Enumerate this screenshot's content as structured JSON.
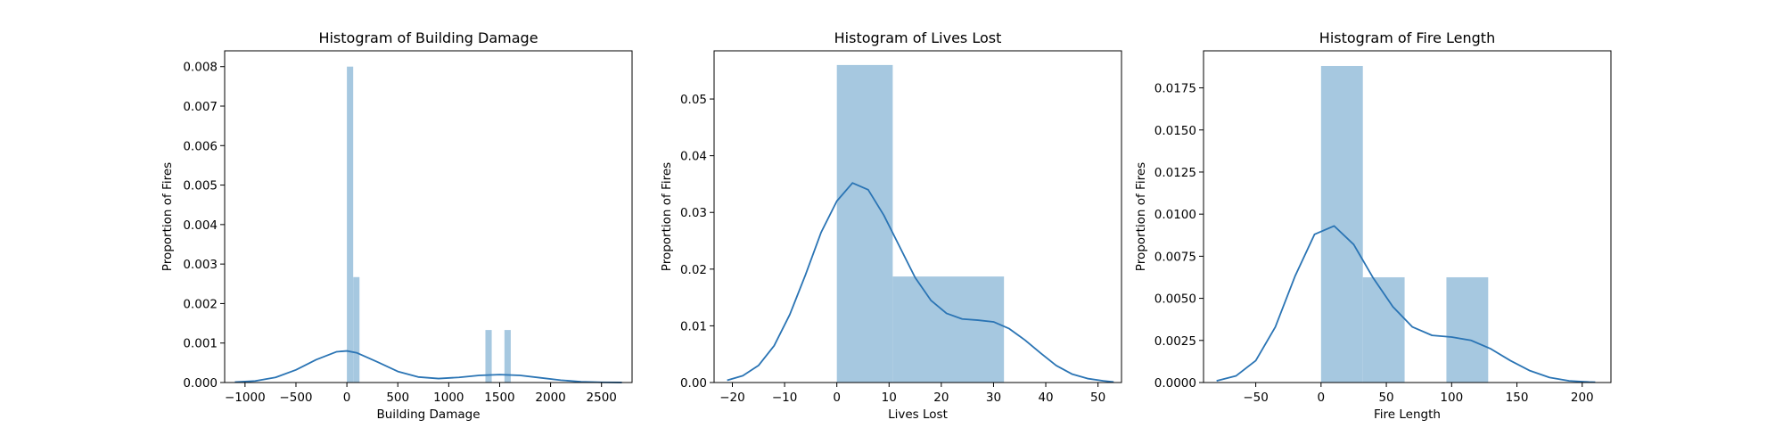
{
  "chart_data": [
    {
      "type": "bar",
      "title": "Histogram of Building Damage",
      "xlabel": "Building Damage",
      "ylabel": "Proportion of Fires",
      "xlim": [
        -1200,
        2800
      ],
      "ylim": [
        0,
        0.0084
      ],
      "xticks": [
        -1000,
        -500,
        0,
        500,
        1000,
        1500,
        2000,
        2500
      ],
      "xtick_labels": [
        "−1000",
        "−500",
        "0",
        "500",
        "1000",
        "1500",
        "2000",
        "2500"
      ],
      "yticks": [
        0,
        0.001,
        0.002,
        0.003,
        0.004,
        0.005,
        0.006,
        0.007,
        0.008
      ],
      "ytick_labels": [
        "0.000",
        "0.001",
        "0.002",
        "0.003",
        "0.004",
        "0.005",
        "0.006",
        "0.007",
        "0.008"
      ],
      "bar_color": "#a6c8e0",
      "line_color": "#2a74b4",
      "bins": [
        {
          "x0": 0,
          "x1": 62,
          "value": 0.008
        },
        {
          "x0": 62,
          "x1": 124,
          "value": 0.00267
        },
        {
          "x0": 1360,
          "x1": 1422,
          "value": 0.00133
        },
        {
          "x0": 1547,
          "x1": 1609,
          "value": 0.00133
        }
      ],
      "kde": {
        "x": [
          -1100,
          -900,
          -700,
          -500,
          -300,
          -100,
          0,
          100,
          300,
          500,
          700,
          900,
          1100,
          1300,
          1500,
          1700,
          1900,
          2100,
          2300,
          2500,
          2700
        ],
        "y": [
          1e-05,
          4e-05,
          0.00013,
          0.00032,
          0.00058,
          0.00078,
          0.0008,
          0.00075,
          0.00052,
          0.00028,
          0.00014,
          0.0001,
          0.00013,
          0.00018,
          0.0002,
          0.00018,
          0.00012,
          6e-05,
          2e-05,
          5e-06,
          1e-06
        ]
      }
    },
    {
      "type": "bar",
      "title": "Histogram of Lives Lost",
      "xlabel": "Lives Lost",
      "ylabel": "Proportion of Fires",
      "xlim": [
        -23.5,
        54.5
      ],
      "ylim": [
        0,
        0.0585
      ],
      "xticks": [
        -20,
        -10,
        0,
        10,
        20,
        30,
        40,
        50
      ],
      "xtick_labels": [
        "−20",
        "−10",
        "0",
        "10",
        "20",
        "30",
        "40",
        "50"
      ],
      "yticks": [
        0,
        0.01,
        0.02,
        0.03,
        0.04,
        0.05
      ],
      "ytick_labels": [
        "0.00",
        "0.01",
        "0.02",
        "0.03",
        "0.04",
        "0.05"
      ],
      "bar_color": "#a6c8e0",
      "line_color": "#2a74b4",
      "bins": [
        {
          "x0": 0,
          "x1": 10.7,
          "value": 0.056
        },
        {
          "x0": 10.7,
          "x1": 21.3,
          "value": 0.0187
        },
        {
          "x0": 21.3,
          "x1": 32,
          "value": 0.0187
        }
      ],
      "kde": {
        "x": [
          -21,
          -18,
          -15,
          -12,
          -9,
          -6,
          -3,
          0,
          3,
          6,
          9,
          12,
          15,
          18,
          21,
          24,
          27,
          30,
          33,
          36,
          39,
          42,
          45,
          48,
          51,
          53
        ],
        "y": [
          0.0004,
          0.0012,
          0.003,
          0.0065,
          0.012,
          0.019,
          0.0265,
          0.032,
          0.0352,
          0.034,
          0.0295,
          0.024,
          0.0185,
          0.0145,
          0.0122,
          0.0112,
          0.011,
          0.0107,
          0.0095,
          0.0075,
          0.0052,
          0.003,
          0.0015,
          0.0007,
          0.0003,
          0.0001
        ]
      }
    },
    {
      "type": "bar",
      "title": "Histogram of Fire Length",
      "xlabel": "Fire Length",
      "ylabel": "Proportion of Fires",
      "xlim": [
        -90,
        222
      ],
      "ylim": [
        0,
        0.0197
      ],
      "xticks": [
        -50,
        0,
        50,
        100,
        150,
        200
      ],
      "xtick_labels": [
        "−50",
        "0",
        "50",
        "100",
        "150",
        "200"
      ],
      "yticks": [
        0,
        0.0025,
        0.005,
        0.0075,
        0.01,
        0.0125,
        0.015,
        0.0175
      ],
      "ytick_labels": [
        "0.0000",
        "0.0025",
        "0.0050",
        "0.0075",
        "0.0100",
        "0.0125",
        "0.0150",
        "0.0175"
      ],
      "bar_color": "#a6c8e0",
      "line_color": "#2a74b4",
      "bins": [
        {
          "x0": 0,
          "x1": 32,
          "value": 0.0188
        },
        {
          "x0": 32,
          "x1": 64,
          "value": 0.00625
        },
        {
          "x0": 96,
          "x1": 128,
          "value": 0.00625
        }
      ],
      "kde": {
        "x": [
          -80,
          -65,
          -50,
          -35,
          -20,
          -5,
          10,
          25,
          40,
          55,
          70,
          85,
          100,
          115,
          130,
          145,
          160,
          175,
          190,
          205,
          210
        ],
        "y": [
          0.0001,
          0.0004,
          0.0013,
          0.0033,
          0.0063,
          0.0088,
          0.0093,
          0.0082,
          0.0062,
          0.0045,
          0.0033,
          0.0028,
          0.0027,
          0.0025,
          0.002,
          0.0013,
          0.0007,
          0.0003,
          0.0001,
          3e-05,
          2e-05
        ]
      }
    }
  ]
}
